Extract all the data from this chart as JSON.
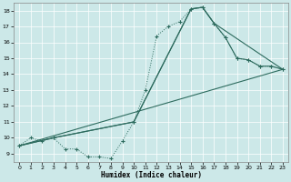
{
  "xlabel": "Humidex (Indice chaleur)",
  "ylabel": "",
  "bg_color": "#cce8e8",
  "line_color": "#2d6b5e",
  "xlim": [
    -0.5,
    23.5
  ],
  "ylim": [
    8.5,
    18.5
  ],
  "xticks": [
    0,
    1,
    2,
    3,
    4,
    5,
    6,
    7,
    8,
    9,
    10,
    11,
    12,
    13,
    14,
    15,
    16,
    17,
    18,
    19,
    20,
    21,
    22,
    23
  ],
  "yticks": [
    9,
    10,
    11,
    12,
    13,
    14,
    15,
    16,
    17,
    18
  ],
  "grid_color": "#b8d8d8",
  "series_dotted_x": [
    0,
    1,
    2,
    3,
    4,
    5,
    6,
    7,
    8,
    9,
    10,
    11,
    12,
    13,
    14,
    15,
    16,
    17,
    18,
    19,
    20,
    21,
    22,
    23
  ],
  "series_dotted_y": [
    9.5,
    10.0,
    9.8,
    10.0,
    9.3,
    9.3,
    8.8,
    8.8,
    8.7,
    9.8,
    11.0,
    13.0,
    16.4,
    17.0,
    17.3,
    18.1,
    18.2,
    17.2,
    16.3,
    15.0,
    14.9,
    14.5,
    14.5,
    14.3
  ],
  "series_line1_x": [
    0,
    3,
    10,
    15,
    16,
    17,
    18,
    19,
    20,
    21,
    22,
    23
  ],
  "series_line1_y": [
    9.5,
    10.0,
    11.0,
    18.1,
    18.2,
    17.2,
    16.3,
    15.0,
    14.9,
    14.5,
    14.5,
    14.3
  ],
  "series_line2_x": [
    0,
    3,
    10,
    15,
    16,
    17,
    23
  ],
  "series_line2_y": [
    9.5,
    10.0,
    11.0,
    18.1,
    18.2,
    17.2,
    14.3
  ],
  "series_line3_x": [
    0,
    23
  ],
  "series_line3_y": [
    9.5,
    14.3
  ]
}
